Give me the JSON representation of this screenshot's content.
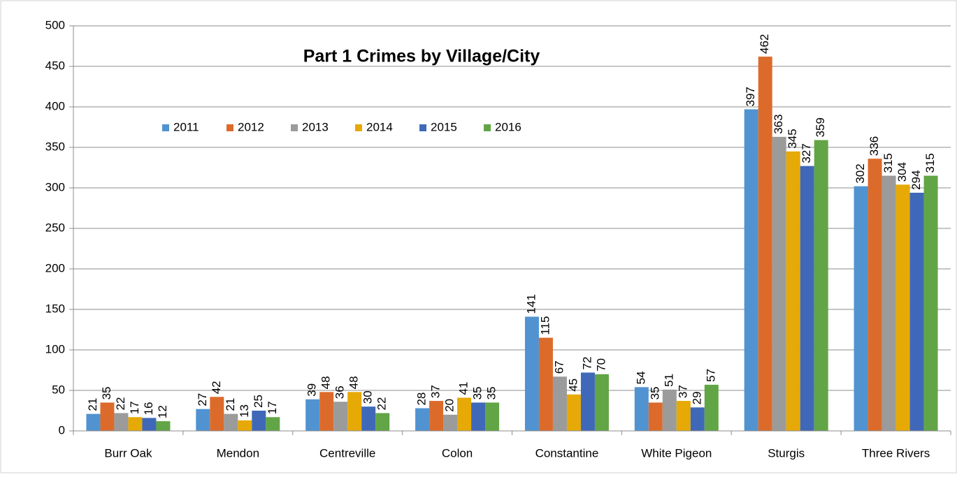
{
  "chart_data": {
    "type": "bar",
    "title": "Part 1 Crimes by Village/City",
    "categories": [
      "Burr Oak",
      "Mendon",
      "Centreville",
      "Colon",
      "Constantine",
      "White Pigeon",
      "Sturgis",
      "Three Rivers"
    ],
    "series": [
      {
        "name": "2011",
        "color": "#5193d0",
        "values": [
          21,
          27,
          39,
          28,
          141,
          54,
          397,
          302
        ]
      },
      {
        "name": "2012",
        "color": "#dc6b2b",
        "values": [
          35,
          42,
          48,
          37,
          115,
          35,
          462,
          336
        ]
      },
      {
        "name": "2013",
        "color": "#9b9b9b",
        "values": [
          22,
          21,
          36,
          20,
          67,
          51,
          363,
          315
        ]
      },
      {
        "name": "2014",
        "color": "#e6a905",
        "values": [
          17,
          13,
          48,
          41,
          45,
          37,
          345,
          304
        ]
      },
      {
        "name": "2015",
        "color": "#3f69b8",
        "values": [
          16,
          25,
          30,
          35,
          72,
          29,
          327,
          294
        ]
      },
      {
        "name": "2016",
        "color": "#62a546",
        "values": [
          12,
          17,
          22,
          35,
          70,
          57,
          359,
          315
        ]
      }
    ],
    "ylim": [
      0,
      500
    ],
    "yticks": [
      0,
      50,
      100,
      150,
      200,
      250,
      300,
      350,
      400,
      450,
      500
    ],
    "grid": true,
    "legend": "top-left"
  }
}
